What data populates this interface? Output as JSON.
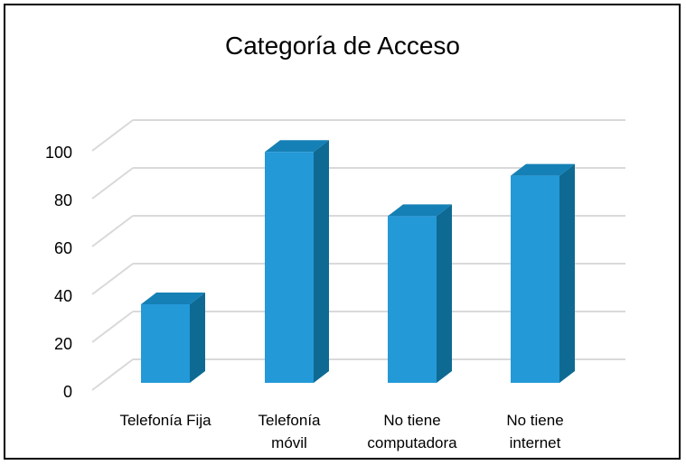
{
  "chart_data": {
    "type": "bar",
    "title": "Categoría de Acceso",
    "categories": [
      [
        "Telefonía Fija"
      ],
      [
        "Telefonía",
        "móvil"
      ],
      [
        "No tiene",
        "computadora"
      ],
      [
        "No tiene",
        "internet"
      ]
    ],
    "values": [
      33,
      97,
      70,
      87
    ],
    "ylim": [
      0,
      100
    ],
    "yticks": [
      0,
      20,
      40,
      60,
      80,
      100
    ],
    "grid": true,
    "legend": false,
    "colors": {
      "bar_front": "#2499d8",
      "bar_side": "#0e6a93",
      "bar_top": "#1580b5",
      "grid": "#d9d9d9",
      "text": "#000000"
    }
  }
}
